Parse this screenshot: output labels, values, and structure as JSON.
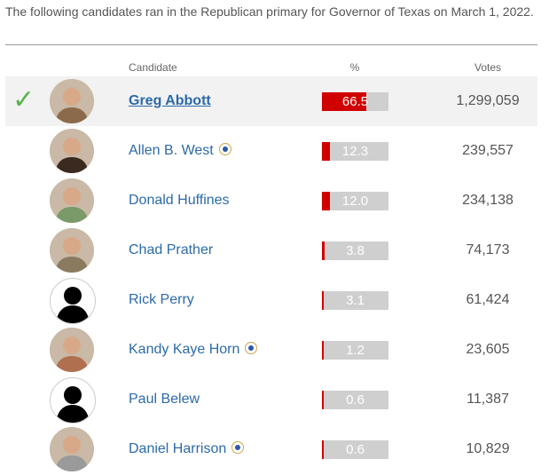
{
  "intro_text": "The following candidates ran in the Republican primary for Governor of Texas on March 1, 2022.",
  "headers": {
    "candidate": "Candidate",
    "percent": "%",
    "votes": "Votes"
  },
  "candidates": [
    {
      "name": "Greg Abbott",
      "percent": 66.5,
      "percent_label": "66.5",
      "votes": "1,299,059",
      "winner": true,
      "incumbent": false,
      "avatar_icon": "candidate-photo-icon"
    },
    {
      "name": "Allen B. West",
      "percent": 12.3,
      "percent_label": "12.3",
      "votes": "239,557",
      "winner": false,
      "incumbent": true,
      "avatar_icon": "candidate-photo-icon"
    },
    {
      "name": "Donald Huffines",
      "percent": 12.0,
      "percent_label": "12.0",
      "votes": "234,138",
      "winner": false,
      "incumbent": false,
      "avatar_icon": "candidate-photo-icon"
    },
    {
      "name": "Chad Prather",
      "percent": 3.8,
      "percent_label": "3.8",
      "votes": "74,173",
      "winner": false,
      "incumbent": false,
      "avatar_icon": "candidate-photo-icon"
    },
    {
      "name": "Rick Perry",
      "percent": 3.1,
      "percent_label": "3.1",
      "votes": "61,424",
      "winner": false,
      "incumbent": false,
      "avatar_icon": "silhouette-icon"
    },
    {
      "name": "Kandy Kaye Horn",
      "percent": 1.2,
      "percent_label": "1.2",
      "votes": "23,605",
      "winner": false,
      "incumbent": true,
      "avatar_icon": "candidate-photo-icon"
    },
    {
      "name": "Paul Belew",
      "percent": 0.6,
      "percent_label": "0.6",
      "votes": "11,387",
      "winner": false,
      "incumbent": false,
      "avatar_icon": "silhouette-icon"
    },
    {
      "name": "Daniel Harrison",
      "percent": 0.6,
      "percent_label": "0.6",
      "votes": "10,829",
      "winner": false,
      "incumbent": true,
      "avatar_icon": "candidate-photo-icon"
    }
  ],
  "colors": {
    "bar_fill": "#d10000",
    "bar_bg": "#cfcfcf",
    "link": "#2c6aa8",
    "check": "#5cb34a",
    "winner_row_bg": "#f2f2f2"
  },
  "icons": {
    "winner": "check-icon",
    "incumbent": "incumbent-badge-icon"
  }
}
